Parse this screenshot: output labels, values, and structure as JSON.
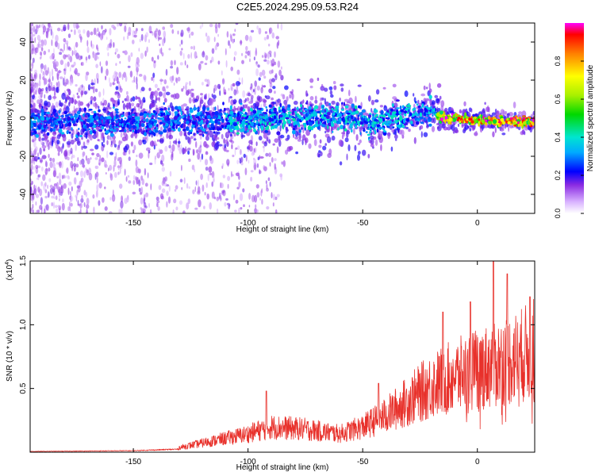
{
  "title": "C2E5.2024.295.09.53.R24",
  "chart_data": [
    {
      "type": "heatmap",
      "xlabel": "Height of straight line (km)",
      "ylabel": "Frequency (Hz)",
      "xlim": [
        -195,
        25
      ],
      "ylim": [
        -50,
        50
      ],
      "xticks": [
        -150,
        -100,
        -50,
        0
      ],
      "yticks": [
        -40,
        -20,
        0,
        20,
        40
      ],
      "colorbar": {
        "label": "Normalized spectral amplitude",
        "range": [
          0,
          1
        ],
        "ticks": [
          "0.0",
          "0.2",
          "0.4",
          "0.6",
          "0.8"
        ]
      },
      "ridge": {
        "description_points": [
          {
            "x": -195,
            "y": -2
          },
          {
            "x": -100,
            "y": -1
          },
          {
            "x": -60,
            "y": 1
          },
          {
            "x": -45,
            "y": -3
          },
          {
            "x": -30,
            "y": 2
          },
          {
            "x": -20,
            "y": 4
          },
          {
            "x": -15,
            "y": 0
          },
          {
            "x": 0,
            "y": -1
          },
          {
            "x": 25,
            "y": -2
          }
        ]
      }
    },
    {
      "type": "line",
      "xlabel": "Height of straight line (km)",
      "ylabel": "SNR (10 * v/v)",
      "scale_label": "(x10",
      "scale_exp": "4",
      "scale_close": ")",
      "xlim": [
        -195,
        25
      ],
      "ylim": [
        0,
        1.5
      ],
      "xticks": [
        -150,
        -100,
        -50,
        0
      ],
      "yticks": [
        "0.5",
        "1.0",
        "1.5"
      ],
      "color": "#e8312b",
      "envelope": [
        {
          "x": -195,
          "y": 0.01
        },
        {
          "x": -150,
          "y": 0.02
        },
        {
          "x": -130,
          "y": 0.04
        },
        {
          "x": -115,
          "y": 0.1
        },
        {
          "x": -100,
          "y": 0.16
        },
        {
          "x": -90,
          "y": 0.22
        },
        {
          "x": -75,
          "y": 0.2
        },
        {
          "x": -60,
          "y": 0.16
        },
        {
          "x": -50,
          "y": 0.22
        },
        {
          "x": -40,
          "y": 0.32
        },
        {
          "x": -30,
          "y": 0.45
        },
        {
          "x": -20,
          "y": 0.58
        },
        {
          "x": -10,
          "y": 0.66
        },
        {
          "x": 0,
          "y": 0.72
        },
        {
          "x": 10,
          "y": 0.78
        },
        {
          "x": 20,
          "y": 0.85
        },
        {
          "x": 25,
          "y": 0.9
        }
      ],
      "peaks": [
        {
          "x": 7,
          "y": 1.5
        },
        {
          "x": 13,
          "y": 1.4
        },
        {
          "x": 23,
          "y": 1.22
        },
        {
          "x": -15,
          "y": 1.1
        },
        {
          "x": -3,
          "y": 1.18
        },
        {
          "x": -92,
          "y": 0.48
        },
        {
          "x": -43,
          "y": 0.54
        }
      ]
    }
  ]
}
